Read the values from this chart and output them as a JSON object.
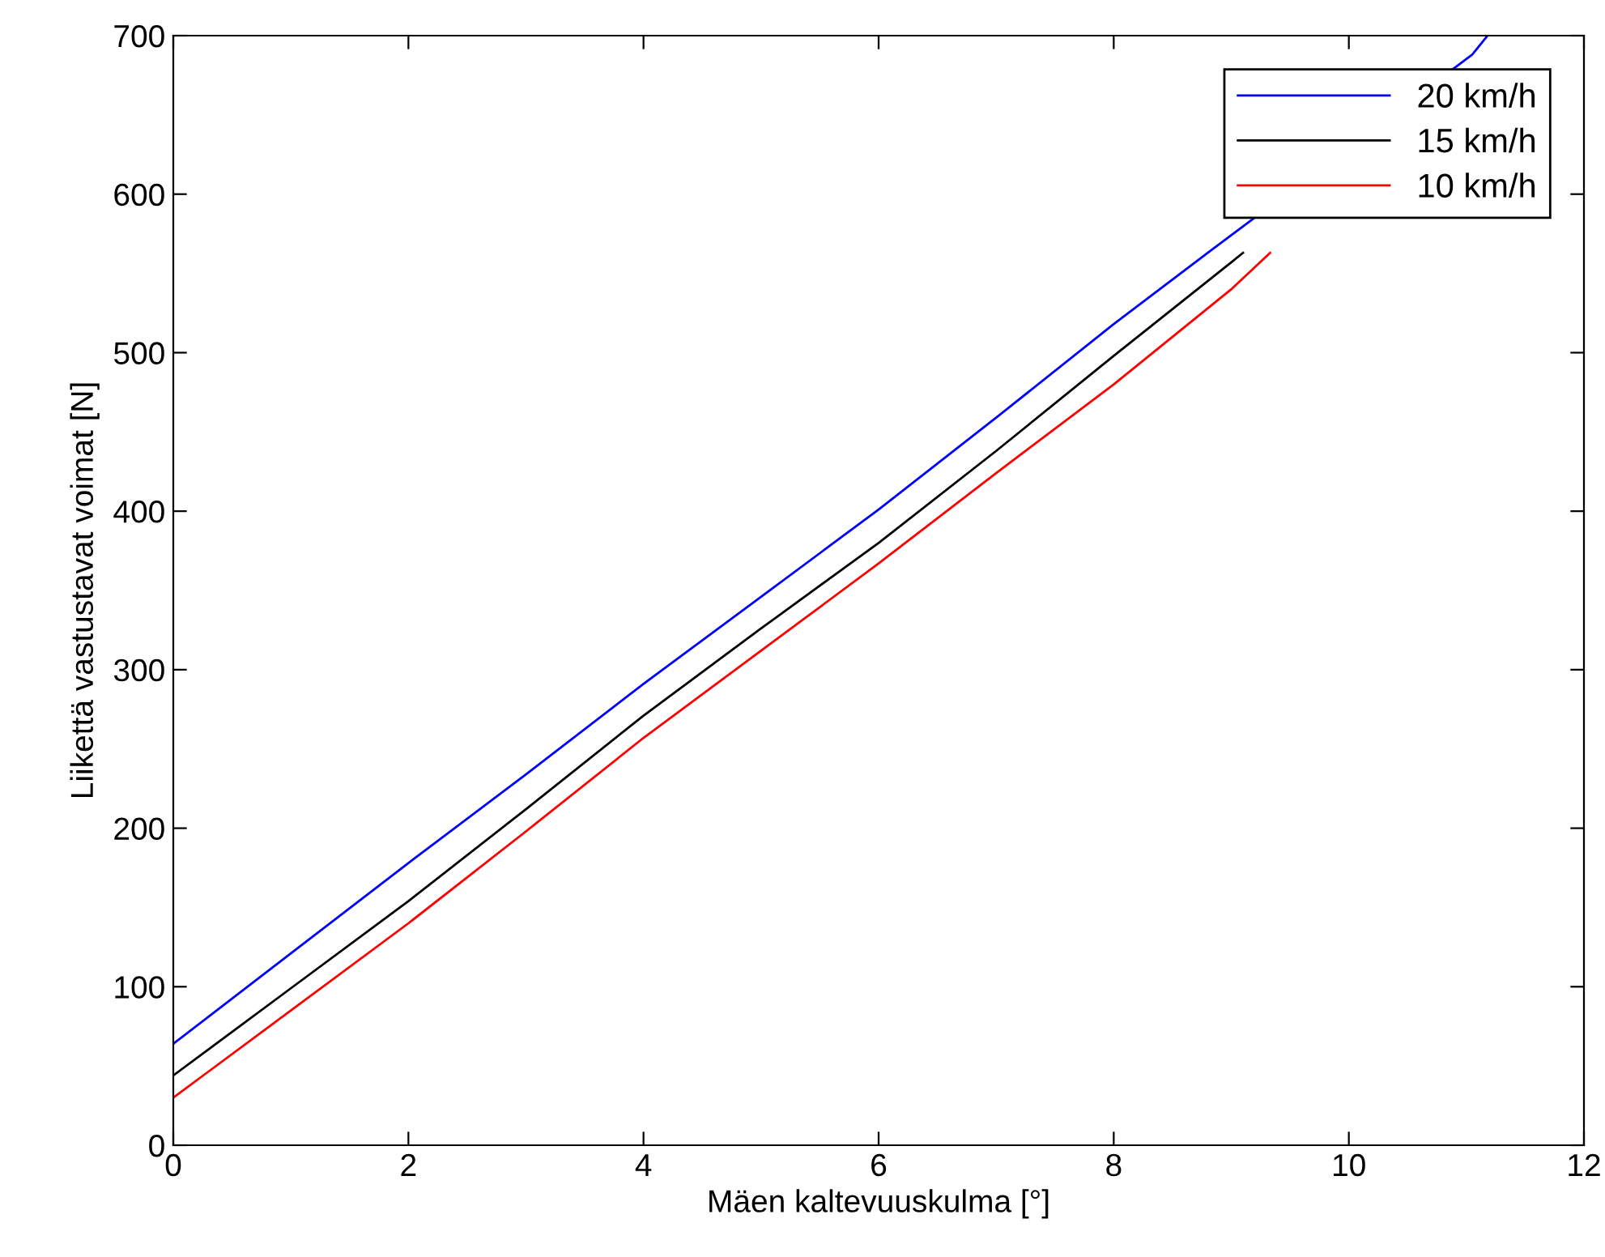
{
  "chart_data": {
    "type": "line",
    "xlabel": "Mäen kaltevuuskulma [°]",
    "ylabel": "Liikettä vastustavat voimat [N]",
    "xlim": [
      0,
      12
    ],
    "ylim": [
      0,
      700
    ],
    "xticks": [
      0,
      2,
      4,
      6,
      8,
      10,
      12
    ],
    "yticks": [
      0,
      100,
      200,
      300,
      400,
      500,
      600,
      700
    ],
    "grid": false,
    "legend": "top right",
    "marker": "none",
    "line_style": "solid",
    "series": [
      {
        "name": "20 km/h",
        "color": "#0000ff",
        "x": [
          0,
          1,
          2,
          3,
          4,
          5,
          6,
          7,
          8,
          8.8,
          11.05,
          11.18
        ],
        "values": [
          64,
          121,
          178,
          234,
          291,
          346,
          401,
          459,
          518,
          563,
          688,
          700
        ]
      },
      {
        "name": "15 km/h",
        "color": "#000000",
        "x": [
          0,
          1,
          2,
          3,
          4,
          5,
          6,
          7,
          8,
          9,
          9.1
        ],
        "values": [
          44,
          99,
          154,
          212,
          271,
          326,
          380,
          438,
          498,
          557,
          563
        ]
      },
      {
        "name": "10 km/h",
        "color": "#ff0000",
        "x": [
          0,
          1,
          2,
          3,
          4,
          5,
          6,
          7,
          8,
          9,
          9.33
        ],
        "values": [
          30,
          85,
          140,
          198,
          257,
          312,
          367,
          424,
          480,
          540,
          563
        ]
      }
    ]
  }
}
